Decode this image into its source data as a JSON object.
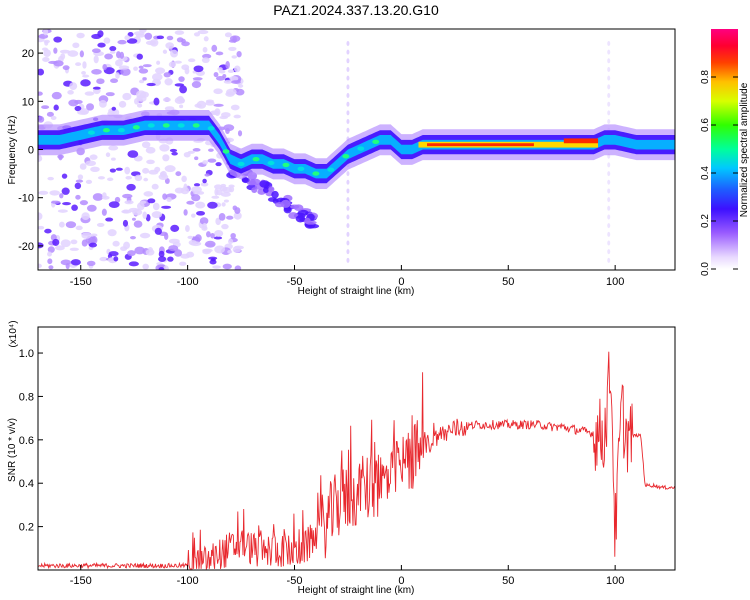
{
  "figure_title": "PAZ1.2024.337.13.20.G10",
  "accent_colors": {
    "snr_line": "#e8282e",
    "frame": "#000000"
  },
  "chart_data": [
    {
      "type": "heatmap",
      "xlabel": "Height of straight line (km)",
      "ylabel": "Frequency (Hz)",
      "xlim": [
        -170,
        128
      ],
      "ylim": [
        -25,
        25
      ],
      "xticks": [
        -150,
        -100,
        -50,
        0,
        50,
        100
      ],
      "yticks": [
        -20,
        -10,
        0,
        10,
        20
      ],
      "colormap": "rainbow (white-violet-blue-cyan-green-yellow-red-magenta)",
      "colorbar": {
        "label": "Normalized spectral amplitude",
        "range": [
          0,
          1
        ],
        "ticks": [
          0.0,
          0.2,
          0.4,
          0.6,
          0.8
        ]
      },
      "ridge": {
        "x": [
          -170,
          -160,
          -150,
          -140,
          -130,
          -120,
          -110,
          -100,
          -95,
          -90,
          -85,
          -80,
          -75,
          -70,
          -65,
          -60,
          -55,
          -50,
          -45,
          -40,
          -35,
          -30,
          -25,
          -20,
          -15,
          -10,
          -5,
          0,
          5,
          10,
          20,
          30,
          40,
          50,
          60,
          70,
          80,
          90,
          95,
          100,
          110,
          120,
          128
        ],
        "y": [
          2,
          2,
          3,
          4,
          4,
          5,
          5,
          5,
          5,
          5,
          2,
          -2,
          -3,
          -2,
          -2,
          -3,
          -3,
          -4,
          -4,
          -5,
          -5,
          -3,
          -1,
          0,
          1,
          2,
          2,
          0,
          0,
          1,
          1,
          1,
          1,
          1,
          1,
          1,
          1,
          1,
          2,
          2,
          1,
          1,
          1
        ]
      }
    },
    {
      "type": "line",
      "xlabel": "Height of straight line (km)",
      "ylabel": "SNR (10 * v/v)",
      "yscale_label": "(x10⁴)",
      "xlim": [
        -170,
        128
      ],
      "ylim": [
        0,
        1.12
      ],
      "xticks": [
        -150,
        -100,
        -50,
        0,
        50,
        100
      ],
      "yticks": [
        0.2,
        0.4,
        0.6,
        0.8,
        1.0
      ],
      "series": [
        {
          "x": [
            -170,
            -150,
            -130,
            -110,
            -100,
            -95,
            -90,
            -85,
            -80,
            -75,
            -70,
            -65,
            -60,
            -55,
            -50,
            -45,
            -40,
            -35,
            -30,
            -25,
            -20,
            -15,
            -10,
            -5,
            0,
            5,
            10,
            15,
            20,
            25,
            30,
            35,
            40,
            45,
            50,
            55,
            60,
            65,
            70,
            75,
            80,
            85,
            90,
            95,
            98,
            100,
            103,
            105,
            110,
            112,
            114,
            118,
            122,
            128
          ],
          "y": [
            0.02,
            0.02,
            0.02,
            0.02,
            0.02,
            0.02,
            0.04,
            0.07,
            0.1,
            0.12,
            0.1,
            0.08,
            0.09,
            0.09,
            0.08,
            0.1,
            0.16,
            0.22,
            0.3,
            0.33,
            0.36,
            0.38,
            0.4,
            0.42,
            0.46,
            0.52,
            0.56,
            0.6,
            0.63,
            0.65,
            0.66,
            0.67,
            0.67,
            0.67,
            0.67,
            0.67,
            0.67,
            0.67,
            0.66,
            0.66,
            0.65,
            0.64,
            0.63,
            0.62,
            0.95,
            0.15,
            0.75,
            0.62,
            0.62,
            0.62,
            0.39,
            0.39,
            0.38,
            0.38
          ]
        }
      ]
    }
  ]
}
